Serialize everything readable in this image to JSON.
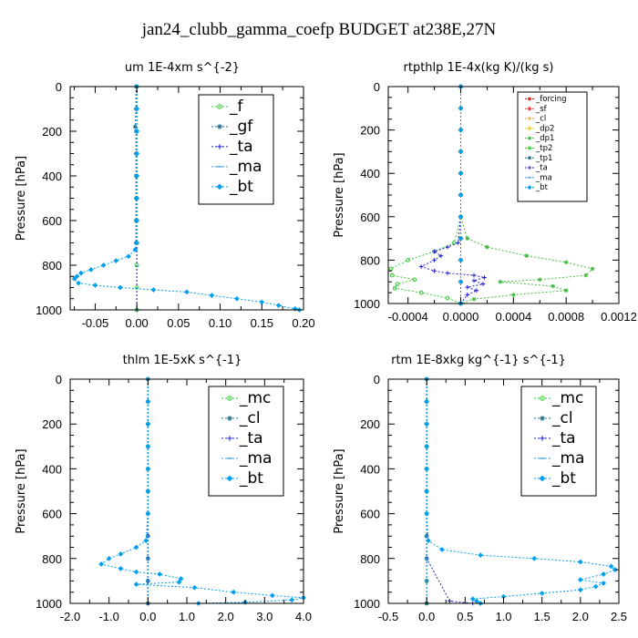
{
  "figure": {
    "title": "jan24_clubb_gamma_coefp  BUDGET at238E,27N"
  },
  "chart_data": [
    {
      "type": "line",
      "title": "um   1E-4xm s^{-2}",
      "ylabel": "Pressure [hPa]",
      "xlim": [
        -0.08,
        0.2
      ],
      "ylim": [
        1000,
        0
      ],
      "xticks": [
        -0.05,
        0.0,
        0.05,
        0.1,
        0.15,
        0.2
      ],
      "xtick_labels": [
        "-0.05",
        "0.00",
        "0.05",
        "0.10",
        "0.15",
        "0.20"
      ],
      "yticks": [
        0,
        200,
        400,
        600,
        800,
        1000
      ],
      "ytick_labels": [
        "0",
        "200",
        "400",
        "600",
        "800",
        "1000"
      ],
      "legend_position": "top-right",
      "legend_size": "large",
      "series": [
        {
          "name": "_f",
          "color": "#33cc33",
          "marker": "circle",
          "x": [
            0,
            0,
            0,
            0,
            0,
            0,
            0,
            0,
            0,
            0,
            0
          ],
          "y": [
            0,
            100,
            200,
            300,
            400,
            500,
            600,
            700,
            800,
            900,
            1000
          ]
        },
        {
          "name": "_gf",
          "color": "#1e6e8c",
          "marker": "star",
          "x": [
            -0.001,
            -0.001,
            -0.002,
            -0.001,
            -0.001,
            -0.001,
            -0.001,
            -0.001,
            -0.001
          ],
          "y": [
            0,
            100,
            180,
            200,
            300,
            400,
            500,
            600,
            700
          ]
        },
        {
          "name": "_ta",
          "color": "#2222cc",
          "marker": "plus",
          "x": [
            0,
            0,
            0,
            0,
            0,
            0,
            0,
            0,
            0
          ],
          "y": [
            0,
            100,
            200,
            300,
            400,
            500,
            600,
            700,
            1000
          ]
        },
        {
          "name": "_ma",
          "color": "#3399dd",
          "marker": "dash",
          "x": [
            0,
            0,
            0,
            0,
            0,
            0,
            0,
            0
          ],
          "y": [
            0,
            100,
            200,
            300,
            400,
            500,
            600,
            700
          ]
        },
        {
          "name": "_bt",
          "color": "#00a0ee",
          "marker": "diamond",
          "x": [
            0,
            0,
            0,
            0,
            0,
            0,
            0,
            0,
            -0.002,
            -0.01,
            -0.025,
            -0.04,
            -0.055,
            -0.067,
            -0.072,
            -0.075,
            -0.07,
            -0.05,
            -0.02,
            0.02,
            0.06,
            0.09,
            0.12,
            0.15,
            0.17,
            0.19,
            0.195
          ],
          "y": [
            0,
            100,
            200,
            300,
            400,
            500,
            600,
            700,
            730,
            760,
            780,
            800,
            820,
            835,
            850,
            860,
            880,
            890,
            900,
            910,
            920,
            935,
            950,
            965,
            980,
            995,
            1000
          ]
        }
      ]
    },
    {
      "type": "line",
      "title": "rtpthlp   1E-4x(kg K)/(kg s)",
      "ylabel": "Pressure [hPa]",
      "xlim": [
        -0.00055,
        0.0012
      ],
      "ylim": [
        1000,
        0
      ],
      "xticks": [
        -0.0004,
        0.0,
        0.0004,
        0.0008,
        0.0012
      ],
      "xtick_labels": [
        "-0.0004",
        "0.0000",
        "0.0004",
        "0.0008",
        "0.0012"
      ],
      "yticks": [
        0,
        200,
        400,
        600,
        800,
        1000
      ],
      "ytick_labels": [
        "0",
        "200",
        "400",
        "600",
        "800",
        "1000"
      ],
      "legend_position": "top-right",
      "legend_size": "small",
      "series": [
        {
          "name": "_forcing",
          "color": "#dd2222",
          "marker": "star",
          "x": [
            0,
            0,
            0,
            0,
            0,
            0,
            0,
            0,
            0,
            0,
            0
          ],
          "y": [
            0,
            100,
            200,
            300,
            400,
            500,
            600,
            700,
            800,
            900,
            1000
          ]
        },
        {
          "name": "_sf",
          "color": "#ee4444",
          "marker": "diamond",
          "x": [
            0,
            0,
            0,
            0,
            0,
            0,
            0,
            0,
            0,
            0,
            0
          ],
          "y": [
            0,
            100,
            200,
            300,
            400,
            500,
            600,
            700,
            800,
            900,
            1000
          ]
        },
        {
          "name": "_cl",
          "color": "#ee9922",
          "marker": "plus",
          "x": [
            0,
            0,
            0,
            0,
            0,
            0,
            0,
            0,
            0,
            0,
            0
          ],
          "y": [
            0,
            100,
            200,
            300,
            400,
            500,
            600,
            700,
            800,
            900,
            1000
          ]
        },
        {
          "name": "_dp2",
          "color": "#eecc33",
          "marker": "diamond",
          "x": [
            0,
            0,
            0,
            0,
            0,
            0,
            0,
            0,
            0,
            0,
            0
          ],
          "y": [
            0,
            100,
            200,
            300,
            400,
            500,
            600,
            700,
            800,
            900,
            1000
          ]
        },
        {
          "name": "_dp1",
          "color": "#44bb44",
          "marker": "star",
          "x": [
            0,
            0,
            0,
            0,
            0,
            0,
            0,
            5e-05,
            0.0002,
            0.0005,
            0.0008,
            0.001,
            0.00095,
            0.0006,
            0.0003,
            0.0007,
            0.0008,
            0.0004,
            0.0001,
            0
          ],
          "y": [
            0,
            100,
            200,
            300,
            400,
            500,
            600,
            700,
            740,
            780,
            810,
            840,
            870,
            890,
            900,
            920,
            940,
            960,
            980,
            1000
          ]
        },
        {
          "name": "_tp2",
          "color": "#33cc33",
          "marker": "circle",
          "x": [
            0,
            0,
            0,
            0,
            0,
            0,
            0,
            -5e-05,
            -0.0002,
            -0.0004,
            -0.00053,
            -0.00052,
            -0.00035,
            -0.00048,
            -0.0005,
            -0.0003,
            -0.0001,
            0
          ],
          "y": [
            0,
            100,
            200,
            300,
            400,
            500,
            600,
            720,
            760,
            800,
            840,
            870,
            890,
            910,
            930,
            950,
            975,
            1000
          ]
        },
        {
          "name": "_tp1",
          "color": "#1e6e8c",
          "marker": "star",
          "x": [
            0,
            0,
            0,
            0,
            0,
            0,
            0,
            0,
            0,
            0,
            0
          ],
          "y": [
            0,
            100,
            200,
            300,
            400,
            500,
            600,
            700,
            800,
            900,
            1000
          ]
        },
        {
          "name": "_ta",
          "color": "#2222cc",
          "marker": "plus",
          "x": [
            0,
            0,
            0,
            0,
            0,
            0,
            0,
            -2e-05,
            -0.0001,
            -0.0002,
            -0.00015,
            -0.0002,
            -0.0003,
            -0.0002,
            -0.0001,
            0.0001,
            0.00018,
            0.0001,
            0.00017,
            5e-05,
            0.00012,
            5e-05,
            0
          ],
          "y": [
            0,
            100,
            200,
            300,
            400,
            500,
            600,
            720,
            740,
            760,
            780,
            800,
            830,
            850,
            860,
            870,
            880,
            895,
            910,
            925,
            940,
            960,
            1000
          ]
        },
        {
          "name": "_ma",
          "color": "#3399dd",
          "marker": "dash",
          "x": [
            0,
            0,
            0,
            0,
            0,
            0,
            0,
            0,
            0,
            0,
            0
          ],
          "y": [
            0,
            100,
            200,
            300,
            400,
            500,
            600,
            700,
            800,
            900,
            1000
          ]
        },
        {
          "name": "_bt",
          "color": "#00a0ee",
          "marker": "diamond",
          "x": [
            0,
            0,
            0,
            0,
            0,
            0,
            0,
            0,
            0,
            0,
            0
          ],
          "y": [
            0,
            100,
            200,
            300,
            400,
            500,
            600,
            700,
            800,
            900,
            1000
          ]
        }
      ]
    },
    {
      "type": "line",
      "title": "thlm   1E-5xK s^{-1}",
      "ylabel": "Pressure [hPa]",
      "xlim": [
        -2.0,
        4.0
      ],
      "ylim": [
        1000,
        0
      ],
      "xticks": [
        -2.0,
        -1.0,
        0.0,
        1.0,
        2.0,
        3.0,
        4.0
      ],
      "xtick_labels": [
        "-2.0",
        "-1.0",
        "0.0",
        "1.0",
        "2.0",
        "3.0",
        "4.0"
      ],
      "yticks": [
        0,
        200,
        400,
        600,
        800,
        1000
      ],
      "ytick_labels": [
        "0",
        "200",
        "400",
        "600",
        "800",
        "1000"
      ],
      "legend_position": "top-right",
      "legend_size": "large",
      "series": [
        {
          "name": "_mc",
          "color": "#33cc33",
          "marker": "circle",
          "x": [
            0,
            0,
            0,
            0,
            0,
            0,
            0,
            0,
            0,
            0,
            0
          ],
          "y": [
            0,
            100,
            200,
            300,
            400,
            500,
            600,
            700,
            800,
            900,
            1000
          ]
        },
        {
          "name": "_cl",
          "color": "#1e6e8c",
          "marker": "star",
          "x": [
            0,
            0,
            0,
            0,
            0,
            0,
            0,
            0,
            0,
            0,
            0
          ],
          "y": [
            0,
            100,
            200,
            300,
            400,
            500,
            600,
            700,
            800,
            900,
            1000
          ]
        },
        {
          "name": "_ta",
          "color": "#2222cc",
          "marker": "plus",
          "x": [
            0,
            0,
            0,
            0,
            0,
            0,
            0,
            0,
            0,
            0,
            0
          ],
          "y": [
            0,
            100,
            200,
            300,
            400,
            500,
            600,
            700,
            800,
            900,
            1000
          ]
        },
        {
          "name": "_ma",
          "color": "#3399dd",
          "marker": "dash",
          "x": [
            0,
            0,
            0,
            0,
            0,
            0,
            0,
            0,
            0,
            0,
            0
          ],
          "y": [
            0,
            100,
            200,
            300,
            400,
            500,
            600,
            700,
            800,
            900,
            1000
          ]
        },
        {
          "name": "_bt",
          "color": "#00a0ee",
          "marker": "diamond",
          "x": [
            0,
            0,
            0,
            0,
            0,
            0,
            0,
            -0.05,
            -0.3,
            -0.7,
            -1.0,
            -1.2,
            -0.7,
            -0.3,
            0.3,
            0.85,
            0.8,
            -0.3,
            1.2,
            2.2,
            3.2,
            4.0,
            3.7,
            2.5,
            1.3
          ],
          "y": [
            0,
            100,
            200,
            300,
            400,
            500,
            600,
            720,
            750,
            780,
            800,
            825,
            845,
            860,
            870,
            890,
            905,
            915,
            930,
            950,
            965,
            975,
            985,
            995,
            1000
          ]
        }
      ]
    },
    {
      "type": "line",
      "title": "rtm   1E-8xkg kg^{-1} s^{-1}",
      "ylabel": "Pressure [hPa]",
      "xlim": [
        -0.5,
        2.5
      ],
      "ylim": [
        1000,
        0
      ],
      "xticks": [
        -0.5,
        0.0,
        0.5,
        1.0,
        1.5,
        2.0,
        2.5
      ],
      "xtick_labels": [
        "-0.5",
        "0.0",
        "0.5",
        "1.0",
        "1.5",
        "2.0",
        "2.5"
      ],
      "yticks": [
        0,
        200,
        400,
        600,
        800,
        1000
      ],
      "ytick_labels": [
        "0",
        "200",
        "400",
        "600",
        "800",
        "1000"
      ],
      "legend_position": "top-right",
      "legend_size": "large",
      "series": [
        {
          "name": "_mc",
          "color": "#33cc33",
          "marker": "circle",
          "x": [
            0,
            0,
            0,
            0,
            0,
            0,
            0,
            0,
            0,
            0,
            0
          ],
          "y": [
            0,
            100,
            200,
            300,
            400,
            500,
            600,
            700,
            800,
            900,
            1000
          ]
        },
        {
          "name": "_cl",
          "color": "#1e6e8c",
          "marker": "star",
          "x": [
            0,
            0,
            0,
            0,
            0,
            0,
            0,
            0,
            0,
            0,
            0
          ],
          "y": [
            0,
            100,
            200,
            300,
            400,
            500,
            600,
            700,
            800,
            900,
            1000
          ]
        },
        {
          "name": "_ta",
          "color": "#2222cc",
          "marker": "plus",
          "x": [
            0,
            0,
            0,
            0,
            0,
            0,
            0,
            0,
            0,
            0.3,
            0.6
          ],
          "y": [
            0,
            100,
            200,
            300,
            400,
            500,
            600,
            700,
            800,
            990,
            1000
          ]
        },
        {
          "name": "_ma",
          "color": "#3399dd",
          "marker": "dash",
          "x": [
            0,
            0,
            0,
            0,
            0,
            0,
            0,
            0,
            0,
            0,
            0
          ],
          "y": [
            0,
            100,
            200,
            300,
            400,
            500,
            600,
            700,
            800,
            900,
            1000
          ]
        },
        {
          "name": "_bt",
          "color": "#00a0ee",
          "marker": "diamond",
          "x": [
            0,
            0,
            0,
            0,
            0,
            0,
            0,
            0.02,
            0.2,
            0.7,
            1.4,
            2.0,
            2.4,
            2.45,
            2.3,
            2.0,
            2.3,
            2.2,
            2.0,
            1.5,
            1.0,
            0.6,
            0.65,
            0.7
          ],
          "y": [
            0,
            100,
            200,
            300,
            400,
            500,
            600,
            720,
            760,
            785,
            800,
            815,
            835,
            850,
            870,
            895,
            910,
            925,
            940,
            955,
            970,
            980,
            990,
            1000
          ]
        }
      ]
    }
  ]
}
